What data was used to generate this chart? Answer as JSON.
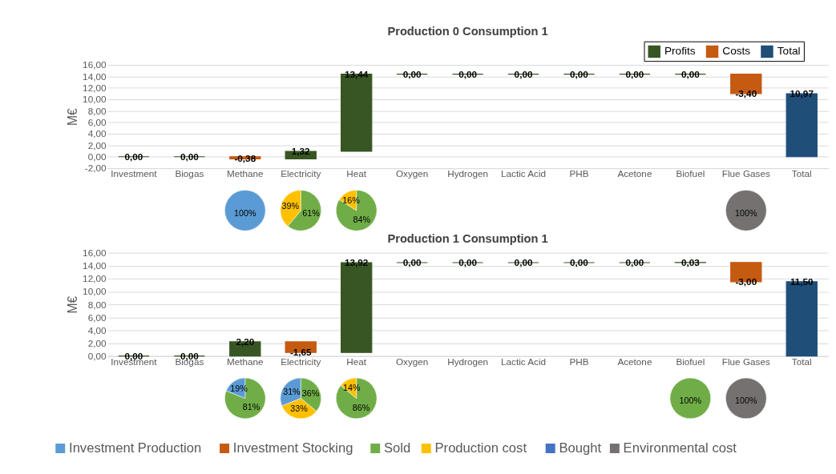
{
  "chart_data": [
    {
      "type": "bar",
      "title": "Production 0 Consumption 1",
      "ylabel": "M€",
      "categories": [
        "Investment",
        "Biogas",
        "Methane",
        "Electricity",
        "Heat",
        "Oxygen",
        "Hydrogen",
        "Lactic Acid",
        "PHB",
        "Acetone",
        "Biofuel",
        "Flue Gases",
        "Total"
      ],
      "series": [
        {
          "name": "Profits",
          "color": "#375623",
          "values": [
            0,
            0,
            null,
            1.32,
            13.44,
            0,
            0,
            0,
            0,
            0,
            0,
            null,
            null
          ],
          "base": [
            0,
            0,
            null,
            -0.38,
            0.94,
            14.38,
            14.38,
            14.38,
            14.38,
            14.38,
            14.38,
            null,
            null
          ],
          "value_labels": [
            "0,00",
            "0,00",
            null,
            "1,32",
            "13,44",
            "0,00",
            "0,00",
            "0,00",
            "0,00",
            "0,00",
            "0,00",
            null,
            null
          ]
        },
        {
          "name": "Costs",
          "color": "#c55a11",
          "values": [
            null,
            null,
            -0.38,
            null,
            null,
            null,
            null,
            null,
            null,
            null,
            null,
            -3.4,
            null
          ],
          "base": [
            null,
            null,
            0,
            null,
            null,
            null,
            null,
            null,
            null,
            null,
            null,
            14.38,
            null
          ],
          "value_labels": [
            null,
            null,
            "-0,38",
            null,
            null,
            null,
            null,
            null,
            null,
            null,
            null,
            "-3,40",
            null
          ]
        },
        {
          "name": "Total",
          "color": "#1f4e79",
          "values": [
            null,
            null,
            null,
            null,
            null,
            null,
            null,
            null,
            null,
            null,
            null,
            null,
            10.97
          ],
          "base": [
            null,
            null,
            null,
            null,
            null,
            null,
            null,
            null,
            null,
            null,
            null,
            null,
            0
          ],
          "value_labels": [
            null,
            null,
            null,
            null,
            null,
            null,
            null,
            null,
            null,
            null,
            null,
            null,
            "10,97"
          ]
        }
      ],
      "ylim": [
        -2,
        16
      ],
      "yticks": [
        {
          "value": -2,
          "label": "-2,00"
        },
        {
          "value": 0,
          "label": "0,00"
        },
        {
          "value": 2,
          "label": "2,00"
        },
        {
          "value": 4,
          "label": "4,00"
        },
        {
          "value": 6,
          "label": "6,00"
        },
        {
          "value": 8,
          "label": "8,00"
        },
        {
          "value": 10,
          "label": "10,00"
        },
        {
          "value": 12,
          "label": "12,00"
        },
        {
          "value": 14,
          "label": "14,00"
        },
        {
          "value": 16,
          "label": "16,00"
        }
      ],
      "grid": "y",
      "legend": "top right"
    },
    {
      "type": "pie",
      "categories": [
        null
      ],
      "values": [
        100
      ],
      "colors": [
        "#5b9bd5"
      ],
      "value_labels": [
        "100%"
      ]
    },
    {
      "type": "pie",
      "categories": [
        null,
        null
      ],
      "values": [
        61,
        39
      ],
      "colors": [
        "#70ad47",
        "#ffc000"
      ],
      "value_labels": [
        "61%",
        "39%"
      ]
    },
    {
      "type": "pie",
      "categories": [
        null,
        null
      ],
      "values": [
        84,
        16
      ],
      "colors": [
        "#70ad47",
        "#ffc000"
      ],
      "value_labels": [
        "84%",
        "16%"
      ]
    },
    {
      "type": "pie",
      "categories": [
        null
      ],
      "values": [
        100
      ],
      "colors": [
        "#767171"
      ],
      "value_labels": [
        "100%"
      ]
    },
    {
      "type": "bar",
      "title": "Production 1 Consumption 1",
      "ylabel": "M€",
      "categories": [
        "Investment",
        "Biogas",
        "Methane",
        "Electricity",
        "Heat",
        "Oxygen",
        "Hydrogen",
        "Lactic Acid",
        "PHB",
        "Acetone",
        "Biofuel",
        "Flue Gases",
        "Total"
      ],
      "series": [
        {
          "color": "#375623",
          "values": [
            0,
            0,
            2.2,
            null,
            13.92,
            0,
            0,
            0,
            0,
            0,
            0.03,
            null,
            null
          ],
          "base": [
            0,
            0,
            0,
            null,
            0.55,
            14.47,
            14.47,
            14.47,
            14.47,
            14.47,
            14.47,
            null,
            null
          ],
          "value_labels": [
            "0,00",
            "0,00",
            "2,20",
            null,
            "13,92",
            "0,00",
            "0,00",
            "0,00",
            "0,00",
            "0,00",
            "0,03",
            null,
            null
          ]
        },
        {
          "color": "#c55a11",
          "values": [
            null,
            null,
            null,
            -1.65,
            null,
            null,
            null,
            null,
            null,
            null,
            null,
            -3.0,
            null
          ],
          "base": [
            null,
            null,
            null,
            2.2,
            null,
            null,
            null,
            null,
            null,
            null,
            null,
            14.5,
            null
          ],
          "value_labels": [
            null,
            null,
            null,
            "-1,65",
            null,
            null,
            null,
            null,
            null,
            null,
            null,
            "-3,00",
            null
          ]
        },
        {
          "color": "#1f4e79",
          "values": [
            null,
            null,
            null,
            null,
            null,
            null,
            null,
            null,
            null,
            null,
            null,
            null,
            11.5
          ],
          "base": [
            null,
            null,
            null,
            null,
            null,
            null,
            null,
            null,
            null,
            null,
            null,
            null,
            0
          ],
          "value_labels": [
            null,
            null,
            null,
            null,
            null,
            null,
            null,
            null,
            null,
            null,
            null,
            null,
            "11,50"
          ]
        }
      ],
      "ylim": [
        0,
        16
      ],
      "yticks": [
        {
          "value": 0,
          "label": "0,00"
        },
        {
          "value": 2,
          "label": "2,00"
        },
        {
          "value": 4,
          "label": "4,00"
        },
        {
          "value": 6,
          "label": "6,00"
        },
        {
          "value": 8,
          "label": "8,00"
        },
        {
          "value": 10,
          "label": "10,00"
        },
        {
          "value": 12,
          "label": "12,00"
        },
        {
          "value": 14,
          "label": "14,00"
        },
        {
          "value": 16,
          "label": "16,00"
        }
      ],
      "grid": "y"
    },
    {
      "type": "pie",
      "categories": [
        null,
        null
      ],
      "values": [
        81,
        19
      ],
      "colors": [
        "#70ad47",
        "#5b9bd5"
      ],
      "value_labels": [
        "81%",
        "19%"
      ]
    },
    {
      "type": "pie",
      "categories": [
        null,
        null,
        null
      ],
      "values": [
        36,
        33,
        31
      ],
      "colors": [
        "#70ad47",
        "#ffc000",
        "#5b9bd5"
      ],
      "value_labels": [
        "36%",
        "33%",
        "31%"
      ]
    },
    {
      "type": "pie",
      "categories": [
        null,
        null
      ],
      "values": [
        86,
        14
      ],
      "colors": [
        "#70ad47",
        "#ffc000"
      ],
      "value_labels": [
        "86%",
        "14%"
      ]
    },
    {
      "type": "pie",
      "categories": [
        null
      ],
      "values": [
        100
      ],
      "colors": [
        "#70ad47"
      ],
      "value_labels": [
        "100%"
      ]
    },
    {
      "type": "pie",
      "categories": [
        null
      ],
      "values": [
        100
      ],
      "colors": [
        "#767171"
      ],
      "value_labels": [
        "100%"
      ]
    },
    {
      "type": "other",
      "categories": [
        "Investment Production",
        "Investment Stocking",
        "Sold",
        "Production cost",
        "Bought",
        "Environmental cost"
      ],
      "colors": [
        "#5b9bd5",
        "#c55a11",
        "#70ad47",
        "#ffc000",
        "#4472c4",
        "#767171"
      ]
    }
  ]
}
